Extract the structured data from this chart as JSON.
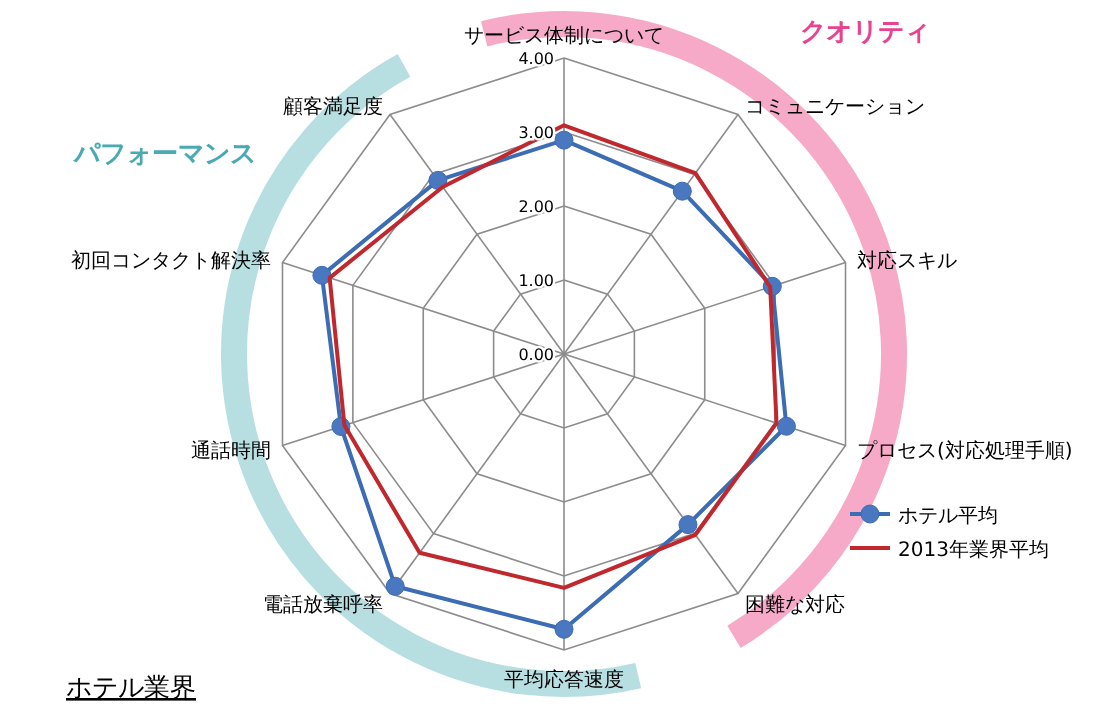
{
  "chart_data": {
    "type": "radar",
    "title": "ホテル業界",
    "categories": [
      "サービス体制について",
      "コミュニケーション",
      "対応スキル",
      "プロセス(対応処理手順)",
      "困難な対応",
      "平均応答速度",
      "電話放棄呼率",
      "通話時間",
      "初回コンタクト解決率",
      "顧客満足度"
    ],
    "series": [
      {
        "name": "ホテル平均",
        "color": "#3b6cb4",
        "marker": "circle",
        "values": [
          2.89,
          2.72,
          2.96,
          3.16,
          2.85,
          3.72,
          3.88,
          3.17,
          3.44,
          2.9
        ]
      },
      {
        "name": "2013年業界平均",
        "color": "#c0282d",
        "marker": "none",
        "values": [
          3.09,
          3.02,
          2.93,
          3.02,
          3.02,
          3.16,
          3.32,
          3.12,
          3.33,
          2.79
        ]
      }
    ],
    "ylim": [
      0,
      4
    ],
    "yticks": [
      {
        "value": 0,
        "label": "0.00"
      },
      {
        "value": 1,
        "label": "1.00"
      },
      {
        "value": 2,
        "label": "2.00"
      },
      {
        "value": 3,
        "label": "3.00"
      },
      {
        "value": 4,
        "label": "4.00"
      }
    ],
    "grid": true,
    "legend": "right",
    "annotations": [
      "クオリティ",
      "パフォーマンス"
    ]
  }
}
